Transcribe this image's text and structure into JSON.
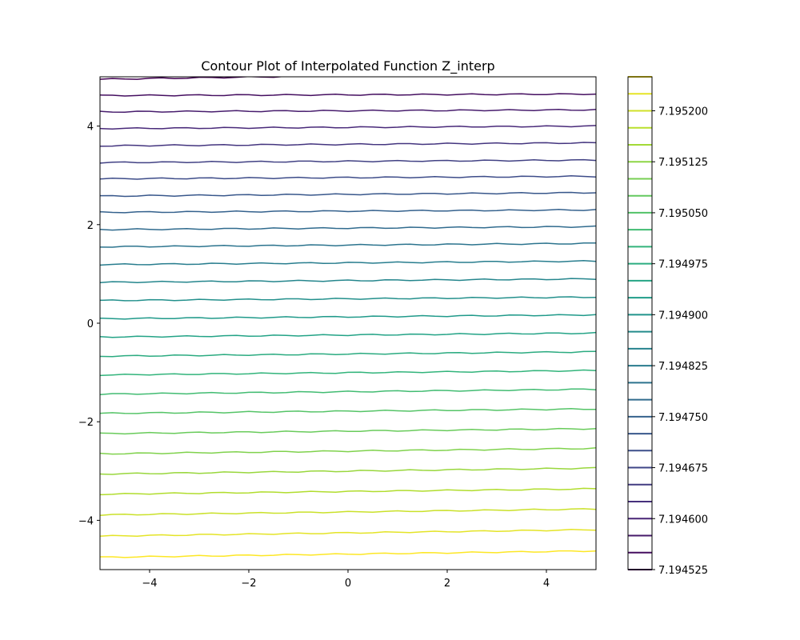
{
  "chart_data": {
    "type": "contour",
    "title": "Contour Plot of Interpolated Function Z_interp",
    "xlabel": "",
    "ylabel": "",
    "xlim": [
      -5,
      5
    ],
    "ylim": [
      -5,
      5
    ],
    "x_ticks": [
      -4,
      -2,
      0,
      2,
      4
    ],
    "y_ticks": [
      -4,
      -2,
      0,
      2,
      4
    ],
    "x_tick_labels": [
      "−4",
      "−2",
      "0",
      "2",
      "4"
    ],
    "y_tick_labels": [
      "−4",
      "−2",
      "0",
      "2",
      "4"
    ],
    "grid": false,
    "colormap": "viridis",
    "colorbar": {
      "position": "right",
      "vmin": 7.194525,
      "vmax": 7.19525,
      "level_step": 2.5e-05,
      "ticks": [
        7.194525,
        7.1946,
        7.194675,
        7.19475,
        7.194825,
        7.1949,
        7.194975,
        7.19505,
        7.195125,
        7.1952
      ],
      "tick_labels": [
        "7.194525",
        "7.194600",
        "7.194675",
        "7.194750",
        "7.194825",
        "7.194900",
        "7.194975",
        "7.195050",
        "7.195125",
        "7.195200"
      ]
    },
    "contour_lines": [
      {
        "level": 7.19455,
        "y_at_left": 4.95,
        "y_at_right": 5.1
      },
      {
        "level": 7.194575,
        "y_at_left": 4.62,
        "y_at_right": 4.65
      },
      {
        "level": 7.1946,
        "y_at_left": 4.29,
        "y_at_right": 4.33
      },
      {
        "level": 7.194625,
        "y_at_left": 3.95,
        "y_at_right": 4.0
      },
      {
        "level": 7.19465,
        "y_at_left": 3.6,
        "y_at_right": 3.66
      },
      {
        "level": 7.194675,
        "y_at_left": 3.26,
        "y_at_right": 3.31
      },
      {
        "level": 7.1947,
        "y_at_left": 2.93,
        "y_at_right": 2.98
      },
      {
        "level": 7.194725,
        "y_at_left": 2.58,
        "y_at_right": 2.65
      },
      {
        "level": 7.19475,
        "y_at_left": 2.25,
        "y_at_right": 2.3
      },
      {
        "level": 7.194775,
        "y_at_left": 1.9,
        "y_at_right": 1.96
      },
      {
        "level": 7.1948,
        "y_at_left": 1.55,
        "y_at_right": 1.62
      },
      {
        "level": 7.194825,
        "y_at_left": 1.19,
        "y_at_right": 1.26
      },
      {
        "level": 7.19485,
        "y_at_left": 0.83,
        "y_at_right": 0.9
      },
      {
        "level": 7.194875,
        "y_at_left": 0.46,
        "y_at_right": 0.53
      },
      {
        "level": 7.1949,
        "y_at_left": 0.09,
        "y_at_right": 0.17
      },
      {
        "level": 7.194925,
        "y_at_left": -0.28,
        "y_at_right": -0.2
      },
      {
        "level": 7.19495,
        "y_at_left": -0.67,
        "y_at_right": -0.58
      },
      {
        "level": 7.194975,
        "y_at_left": -1.05,
        "y_at_right": -0.96
      },
      {
        "level": 7.195,
        "y_at_left": -1.44,
        "y_at_right": -1.34
      },
      {
        "level": 7.195025,
        "y_at_left": -1.83,
        "y_at_right": -1.74
      },
      {
        "level": 7.19505,
        "y_at_left": -2.24,
        "y_at_right": -2.14
      },
      {
        "level": 7.195075,
        "y_at_left": -2.65,
        "y_at_right": -2.54
      },
      {
        "level": 7.1951,
        "y_at_left": -3.06,
        "y_at_right": -2.94
      },
      {
        "level": 7.195125,
        "y_at_left": -3.47,
        "y_at_right": -3.36
      },
      {
        "level": 7.19515,
        "y_at_left": -3.89,
        "y_at_right": -3.77
      },
      {
        "level": 7.195175,
        "y_at_left": -4.32,
        "y_at_right": -4.19
      },
      {
        "level": 7.1952,
        "y_at_left": -4.75,
        "y_at_right": -4.62
      }
    ]
  }
}
